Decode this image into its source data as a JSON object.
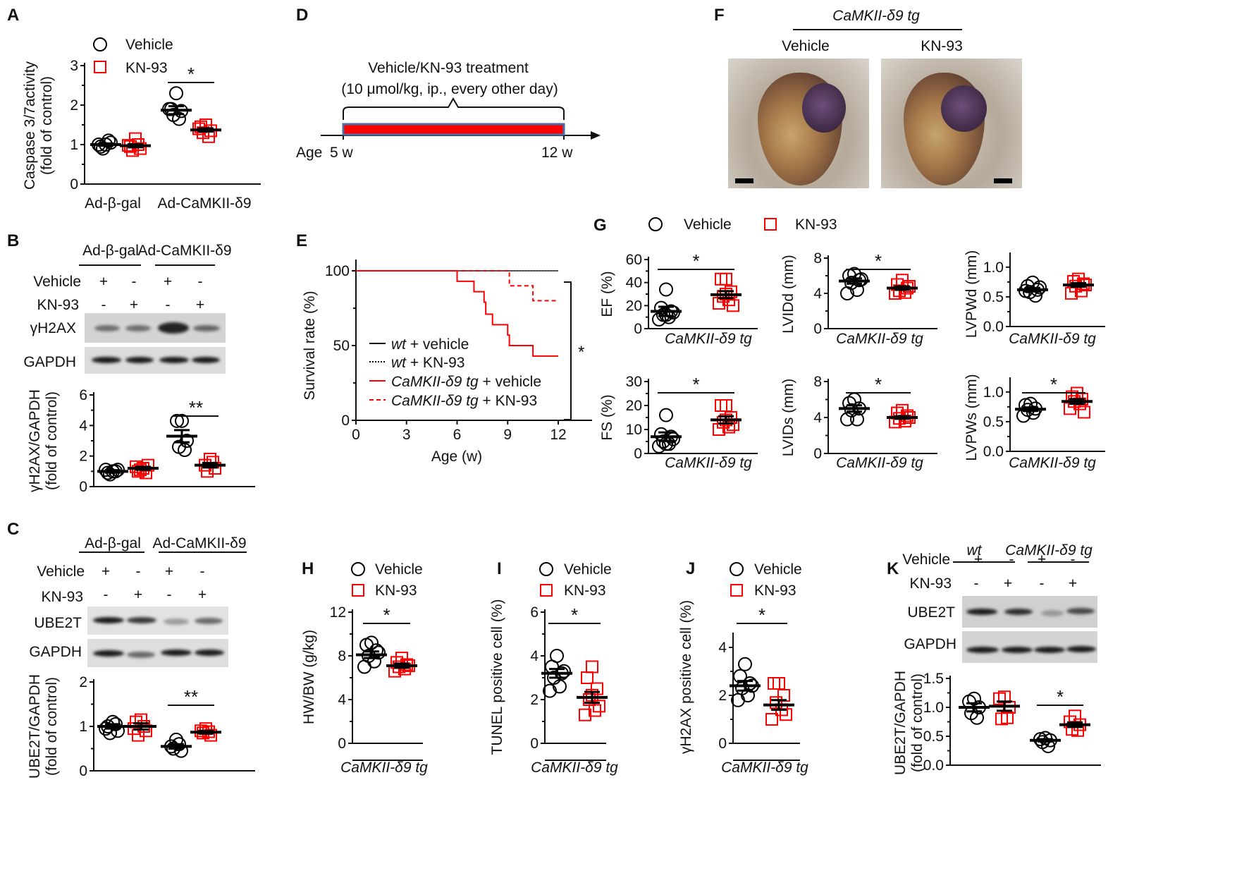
{
  "panel_labels": {
    "A": "A",
    "B": "B",
    "C": "C",
    "D": "D",
    "E": "E",
    "F": "F",
    "G": "G",
    "H": "H",
    "I": "I",
    "J": "J",
    "K": "K"
  },
  "legend": {
    "vehicle": "Vehicle",
    "kn93": "KN-93"
  },
  "colors": {
    "vehicle": "#000000",
    "kn93": "#ff0000",
    "bar_fill": "#ff0000",
    "bar_edge": "#4a6fa5"
  },
  "panel_A": {
    "ylabel_1": "Caspase 3/7activity",
    "ylabel_2": "(fold of control)",
    "cat_1": "Ad-β-gal",
    "cat_2": "Ad-CaMKII-δ9"
  },
  "panel_B": {
    "hdr_1": "Ad-β-gal",
    "hdr_2": "Ad-CaMKII-δ9",
    "row_vehicle": "Vehicle",
    "row_kn93": "KN-93",
    "vehicle_signs": [
      "+",
      "-",
      "+",
      "-"
    ],
    "kn93_signs": [
      "-",
      "+",
      "-",
      "+"
    ],
    "blot_1": "γH2AX",
    "blot_2": "GAPDH",
    "ylabel_1": "γH2AX/GAPDH",
    "ylabel_2": "(fold of control)"
  },
  "panel_C": {
    "hdr_1": "Ad-β-gal",
    "hdr_2": "Ad-CaMKII-δ9",
    "row_vehicle": "Vehicle",
    "row_kn93": "KN-93",
    "vehicle_signs": [
      "+",
      "-",
      "+",
      "-"
    ],
    "kn93_signs": [
      "-",
      "+",
      "-",
      "+"
    ],
    "blot_1": "UBE2T",
    "blot_2": "GAPDH",
    "ylabel_1": "UBE2T/GAPDH",
    "ylabel_2": "(fold of control)"
  },
  "panel_D": {
    "line_1": "Vehicle/KN-93 treatment",
    "line_2": "(10 μmol/kg, ip., every other day)",
    "age": "Age",
    "start": "5 w",
    "end": "12 w"
  },
  "panel_E": {
    "ylabel": "Survival rate (%)",
    "xlabel": "Age (w)",
    "sig": "*",
    "legend": [
      {
        "pre": "wt",
        "post": " + vehicle"
      },
      {
        "pre": "wt",
        "post": " + KN-93"
      },
      {
        "pre": "CaMKII-δ9 tg",
        "post": " + vehicle"
      },
      {
        "pre": "CaMKII-δ9 tg",
        "post": " + KN-93"
      }
    ]
  },
  "panel_F": {
    "title": "CaMKII-δ9 tg",
    "label_1": "Vehicle",
    "label_2": "KN-93"
  },
  "panel_G": {
    "xlabel": "CaMKII-δ9 tg"
  },
  "panel_HIJ": {
    "xlabel": "CaMKII-δ9 tg"
  },
  "panel_K": {
    "hdr_1": "wt",
    "hdr_2": "CaMKII-δ9 tg",
    "row_vehicle": "Vehicle",
    "row_kn93": "KN-93",
    "vehicle_signs": [
      "+",
      "-",
      "+",
      "-"
    ],
    "kn93_signs": [
      "-",
      "+",
      "-",
      "+"
    ],
    "blot_1": "UBE2T",
    "blot_2": "GAPDH",
    "ylabel_1": "UBE2T/GAPDH",
    "ylabel_2": "(fold of control)"
  },
  "chart_data": [
    {
      "id": "A",
      "type": "scatter",
      "ylabel": "Caspase 3/7activity (fold of control)",
      "ylim": [
        0,
        3
      ],
      "yticks": [
        "0",
        "1",
        "2",
        "3"
      ],
      "categories": [
        "Ad-β-gal",
        "Ad-CaMKII-δ9"
      ],
      "groups": [
        {
          "series": "Vehicle",
          "mean": 1.0,
          "sem": 0.03,
          "points": [
            1.0,
            0.95,
            1.05,
            0.9,
            1.1,
            1.0
          ]
        },
        {
          "series": "KN-93",
          "mean": 0.97,
          "sem": 0.04,
          "points": [
            1.15,
            0.95,
            0.9,
            0.85,
            1.0,
            0.98
          ]
        },
        {
          "series": "Vehicle",
          "mean": 1.87,
          "sem": 0.1,
          "points": [
            2.3,
            1.9,
            1.85,
            1.75,
            1.65,
            1.9
          ]
        },
        {
          "series": "KN-93",
          "mean": 1.37,
          "sem": 0.04,
          "points": [
            1.5,
            1.45,
            1.35,
            1.3,
            1.2,
            1.4
          ]
        }
      ],
      "significance": [
        {
          "between": [
            2,
            3
          ],
          "label": "*"
        }
      ]
    },
    {
      "id": "B",
      "type": "scatter",
      "ylabel": "γH2AX/GAPDH (fold of control)",
      "ylim": [
        0,
        6
      ],
      "yticks": [
        "0",
        "2",
        "4",
        "6"
      ],
      "groups": [
        {
          "series": "Vehicle",
          "mean": 1.0,
          "sem": 0.08,
          "points": [
            1.0,
            0.9,
            1.1,
            0.8,
            1.0,
            1.1
          ]
        },
        {
          "series": "KN-93",
          "mean": 1.2,
          "sem": 0.1,
          "points": [
            1.2,
            1.0,
            1.4,
            1.1,
            0.9,
            1.3
          ]
        },
        {
          "series": "Vehicle",
          "mean": 3.3,
          "sem": 0.4,
          "points": [
            4.3,
            4.3,
            3.0,
            2.6,
            2.4
          ]
        },
        {
          "series": "KN-93",
          "mean": 1.4,
          "sem": 0.15,
          "points": [
            1.8,
            1.4,
            1.2,
            1.0,
            1.6
          ]
        }
      ],
      "significance": [
        {
          "between": [
            2,
            3
          ],
          "label": "**"
        }
      ]
    },
    {
      "id": "C",
      "type": "scatter",
      "ylabel": "UBE2T/GAPDH (fold of control)",
      "ylim": [
        0,
        2
      ],
      "yticks": [
        "0",
        "1",
        "2"
      ],
      "groups": [
        {
          "series": "Vehicle",
          "mean": 1.0,
          "sem": 0.05,
          "points": [
            1.1,
            1.0,
            0.9,
            0.85,
            1.05,
            0.95
          ]
        },
        {
          "series": "KN-93",
          "mean": 1.0,
          "sem": 0.07,
          "points": [
            1.15,
            1.1,
            0.9,
            0.8,
            1.0,
            0.95
          ]
        },
        {
          "series": "Vehicle",
          "mean": 0.55,
          "sem": 0.05,
          "points": [
            0.7,
            0.55,
            0.45,
            0.5,
            0.6
          ]
        },
        {
          "series": "KN-93",
          "mean": 0.87,
          "sem": 0.03,
          "points": [
            0.95,
            0.9,
            0.8,
            0.85,
            0.88
          ]
        }
      ],
      "significance": [
        {
          "between": [
            2,
            3
          ],
          "label": "**"
        }
      ]
    },
    {
      "id": "E",
      "type": "line",
      "title": "",
      "xlabel": "Age (w)",
      "ylabel": "Survival rate (%)",
      "xlim": [
        0,
        12
      ],
      "ylim": [
        0,
        100
      ],
      "xticks": [
        "0",
        "3",
        "6",
        "9",
        "12"
      ],
      "yticks": [
        "0",
        "50",
        "100"
      ],
      "series": [
        {
          "name": "wt + vehicle",
          "style": "solid",
          "color": "#000000",
          "x": [
            0,
            12
          ],
          "y": [
            100,
            100
          ]
        },
        {
          "name": "wt + KN-93",
          "style": "dotted",
          "color": "#000000",
          "x": [
            0,
            12
          ],
          "y": [
            100,
            100
          ]
        },
        {
          "name": "CaMKII-δ9 tg + vehicle",
          "style": "solid",
          "color": "#ff0000",
          "x": [
            0,
            6,
            7,
            7.6,
            7.7,
            8.1,
            9,
            9.1,
            10.5,
            12
          ],
          "y": [
            100,
            93,
            86,
            79,
            71,
            64,
            57,
            50,
            43,
            43
          ]
        },
        {
          "name": "CaMKII-δ9 tg + KN-93",
          "style": "dashed",
          "color": "#ff0000",
          "x": [
            0,
            9.1,
            10.5,
            12
          ],
          "y": [
            100,
            90,
            80,
            80
          ]
        }
      ],
      "significance": [
        {
          "label": "*"
        }
      ]
    },
    {
      "id": "EF",
      "type": "scatter",
      "ylabel": "EF (%)",
      "ylim": [
        0,
        60
      ],
      "yticks": [
        "0",
        "20",
        "40",
        "60"
      ],
      "groups": [
        {
          "series": "Vehicle",
          "mean": 15,
          "sem": 4,
          "points": [
            34,
            18,
            15,
            12,
            10,
            8,
            14,
            12
          ]
        },
        {
          "series": "KN-93",
          "mean": 29.5,
          "sem": 3,
          "points": [
            43,
            43,
            32,
            28,
            25,
            22,
            20,
            30
          ]
        }
      ],
      "significance": [
        {
          "between": [
            0,
            1
          ],
          "label": "*"
        }
      ]
    },
    {
      "id": "LVIDd",
      "type": "scatter",
      "ylabel": "LVIDd (mm)",
      "ylim": [
        0,
        8
      ],
      "yticks": [
        "0",
        "4",
        "8"
      ],
      "groups": [
        {
          "series": "Vehicle",
          "mean": 5.4,
          "sem": 0.3,
          "points": [
            6.2,
            6.0,
            5.5,
            5.2,
            4.4,
            4.0,
            5.6
          ]
        },
        {
          "series": "KN-93",
          "mean": 4.6,
          "sem": 0.2,
          "points": [
            5.5,
            5.0,
            4.6,
            4.3,
            4.1,
            4.0,
            4.8
          ]
        }
      ],
      "significance": [
        {
          "between": [
            0,
            1
          ],
          "label": "*"
        }
      ]
    },
    {
      "id": "LVPWd",
      "type": "scatter",
      "ylabel": "LVPWd (mm)",
      "ylim": [
        0,
        1.2
      ],
      "yticks": [
        "0.0",
        "0.5",
        "1.0"
      ],
      "groups": [
        {
          "series": "Vehicle",
          "mean": 0.62,
          "sem": 0.03,
          "points": [
            0.74,
            0.68,
            0.62,
            0.58,
            0.52,
            0.6,
            0.66
          ]
        },
        {
          "series": "KN-93",
          "mean": 0.7,
          "sem": 0.03,
          "points": [
            0.8,
            0.76,
            0.72,
            0.68,
            0.6,
            0.56,
            0.7
          ]
        }
      ],
      "significance": []
    },
    {
      "id": "FS",
      "type": "scatter",
      "ylabel": "FS (%)",
      "ylim": [
        0,
        30
      ],
      "yticks": [
        "0",
        "10",
        "20",
        "30"
      ],
      "groups": [
        {
          "series": "Vehicle",
          "mean": 7,
          "sem": 1.8,
          "points": [
            16,
            8,
            7,
            5,
            4,
            3,
            6,
            4
          ]
        },
        {
          "series": "KN-93",
          "mean": 14,
          "sem": 1.5,
          "points": [
            20,
            20,
            15,
            13,
            11,
            10,
            12,
            14
          ]
        }
      ],
      "significance": [
        {
          "between": [
            0,
            1
          ],
          "label": "*"
        }
      ]
    },
    {
      "id": "LVIDs",
      "type": "scatter",
      "ylabel": "LVIDs (mm)",
      "ylim": [
        0,
        8
      ],
      "yticks": [
        "0",
        "4",
        "8"
      ],
      "groups": [
        {
          "series": "Vehicle",
          "mean": 5.0,
          "sem": 0.35,
          "points": [
            6.0,
            5.6,
            5.0,
            4.8,
            3.8,
            3.8
          ]
        },
        {
          "series": "KN-93",
          "mean": 4.0,
          "sem": 0.15,
          "points": [
            4.8,
            4.5,
            4.2,
            3.9,
            3.6,
            3.5,
            4.0
          ]
        }
      ],
      "significance": [
        {
          "between": [
            0,
            1
          ],
          "label": "*"
        }
      ]
    },
    {
      "id": "LVPWs",
      "type": "scatter",
      "ylabel": "LVPWs (mm)",
      "ylim": [
        0,
        1.2
      ],
      "yticks": [
        "0.0",
        "0.5",
        "1.0"
      ],
      "groups": [
        {
          "series": "Vehicle",
          "mean": 0.71,
          "sem": 0.03,
          "points": [
            0.8,
            0.78,
            0.72,
            0.7,
            0.65,
            0.6
          ]
        },
        {
          "series": "KN-93",
          "mean": 0.84,
          "sem": 0.04,
          "points": [
            0.98,
            0.92,
            0.88,
            0.84,
            0.8,
            0.72,
            0.66
          ]
        }
      ],
      "significance": [
        {
          "between": [
            0,
            1
          ],
          "label": "*"
        }
      ]
    },
    {
      "id": "H",
      "type": "scatter",
      "ylabel": "HW/BW (g/kg)",
      "ylim": [
        0,
        12
      ],
      "yticks": [
        "0",
        "4",
        "8",
        "12"
      ],
      "groups": [
        {
          "series": "Vehicle",
          "mean": 8.1,
          "sem": 0.3,
          "points": [
            9.2,
            9.0,
            8.5,
            8.0,
            7.5,
            7.0,
            8.3
          ]
        },
        {
          "series": "KN-93",
          "mean": 7.1,
          "sem": 0.2,
          "points": [
            7.8,
            7.4,
            7.2,
            7.0,
            6.8,
            6.6,
            7.1
          ]
        }
      ],
      "significance": [
        {
          "between": [
            0,
            1
          ],
          "label": "*"
        }
      ]
    },
    {
      "id": "I",
      "type": "scatter",
      "ylabel": "TUNEL positive cell (%)",
      "ylim": [
        0,
        6
      ],
      "yticks": [
        "0",
        "2",
        "4",
        "6"
      ],
      "groups": [
        {
          "series": "Vehicle",
          "mean": 3.2,
          "sem": 0.2,
          "points": [
            4.0,
            3.5,
            3.2,
            3.0,
            2.6,
            2.4,
            3.3
          ]
        },
        {
          "series": "KN-93",
          "mean": 2.1,
          "sem": 0.25,
          "points": [
            3.5,
            3.0,
            2.5,
            2.0,
            1.5,
            1.3,
            1.7,
            2.2
          ]
        }
      ],
      "significance": [
        {
          "between": [
            0,
            1
          ],
          "label": "*"
        }
      ]
    },
    {
      "id": "J",
      "type": "scatter",
      "ylabel": "γH2AX positive cell (%)",
      "ylim": [
        0,
        4.5
      ],
      "yticks": [
        "0",
        "2",
        "4"
      ],
      "groups": [
        {
          "series": "Vehicle",
          "mean": 2.4,
          "sem": 0.2,
          "points": [
            3.3,
            2.8,
            2.5,
            2.3,
            2.0,
            1.8,
            2.4
          ]
        },
        {
          "series": "KN-93",
          "mean": 1.6,
          "sem": 0.2,
          "points": [
            2.5,
            2.5,
            2.0,
            1.7,
            1.4,
            1.0,
            1.2
          ]
        }
      ],
      "significance": [
        {
          "between": [
            0,
            1
          ],
          "label": "*"
        }
      ]
    },
    {
      "id": "K",
      "type": "scatter",
      "ylabel": "UBE2T/GAPDH (fold of control)",
      "ylim": [
        0,
        1.5
      ],
      "yticks": [
        "0.0",
        "0.5",
        "1.0",
        "1.5"
      ],
      "groups": [
        {
          "series": "Vehicle",
          "mean": 1.0,
          "sem": 0.07,
          "points": [
            1.15,
            1.1,
            1.0,
            0.9,
            0.82
          ]
        },
        {
          "series": "KN-93",
          "mean": 1.02,
          "sem": 0.08,
          "points": [
            1.18,
            1.15,
            1.0,
            0.8,
            0.82
          ]
        },
        {
          "series": "Vehicle",
          "mean": 0.43,
          "sem": 0.02,
          "points": [
            0.47,
            0.45,
            0.43,
            0.4,
            0.33
          ]
        },
        {
          "series": "KN-93",
          "mean": 0.7,
          "sem": 0.04,
          "points": [
            0.85,
            0.75,
            0.7,
            0.62,
            0.6
          ]
        }
      ],
      "significance": [
        {
          "between": [
            2,
            3
          ],
          "label": "*"
        }
      ]
    }
  ]
}
